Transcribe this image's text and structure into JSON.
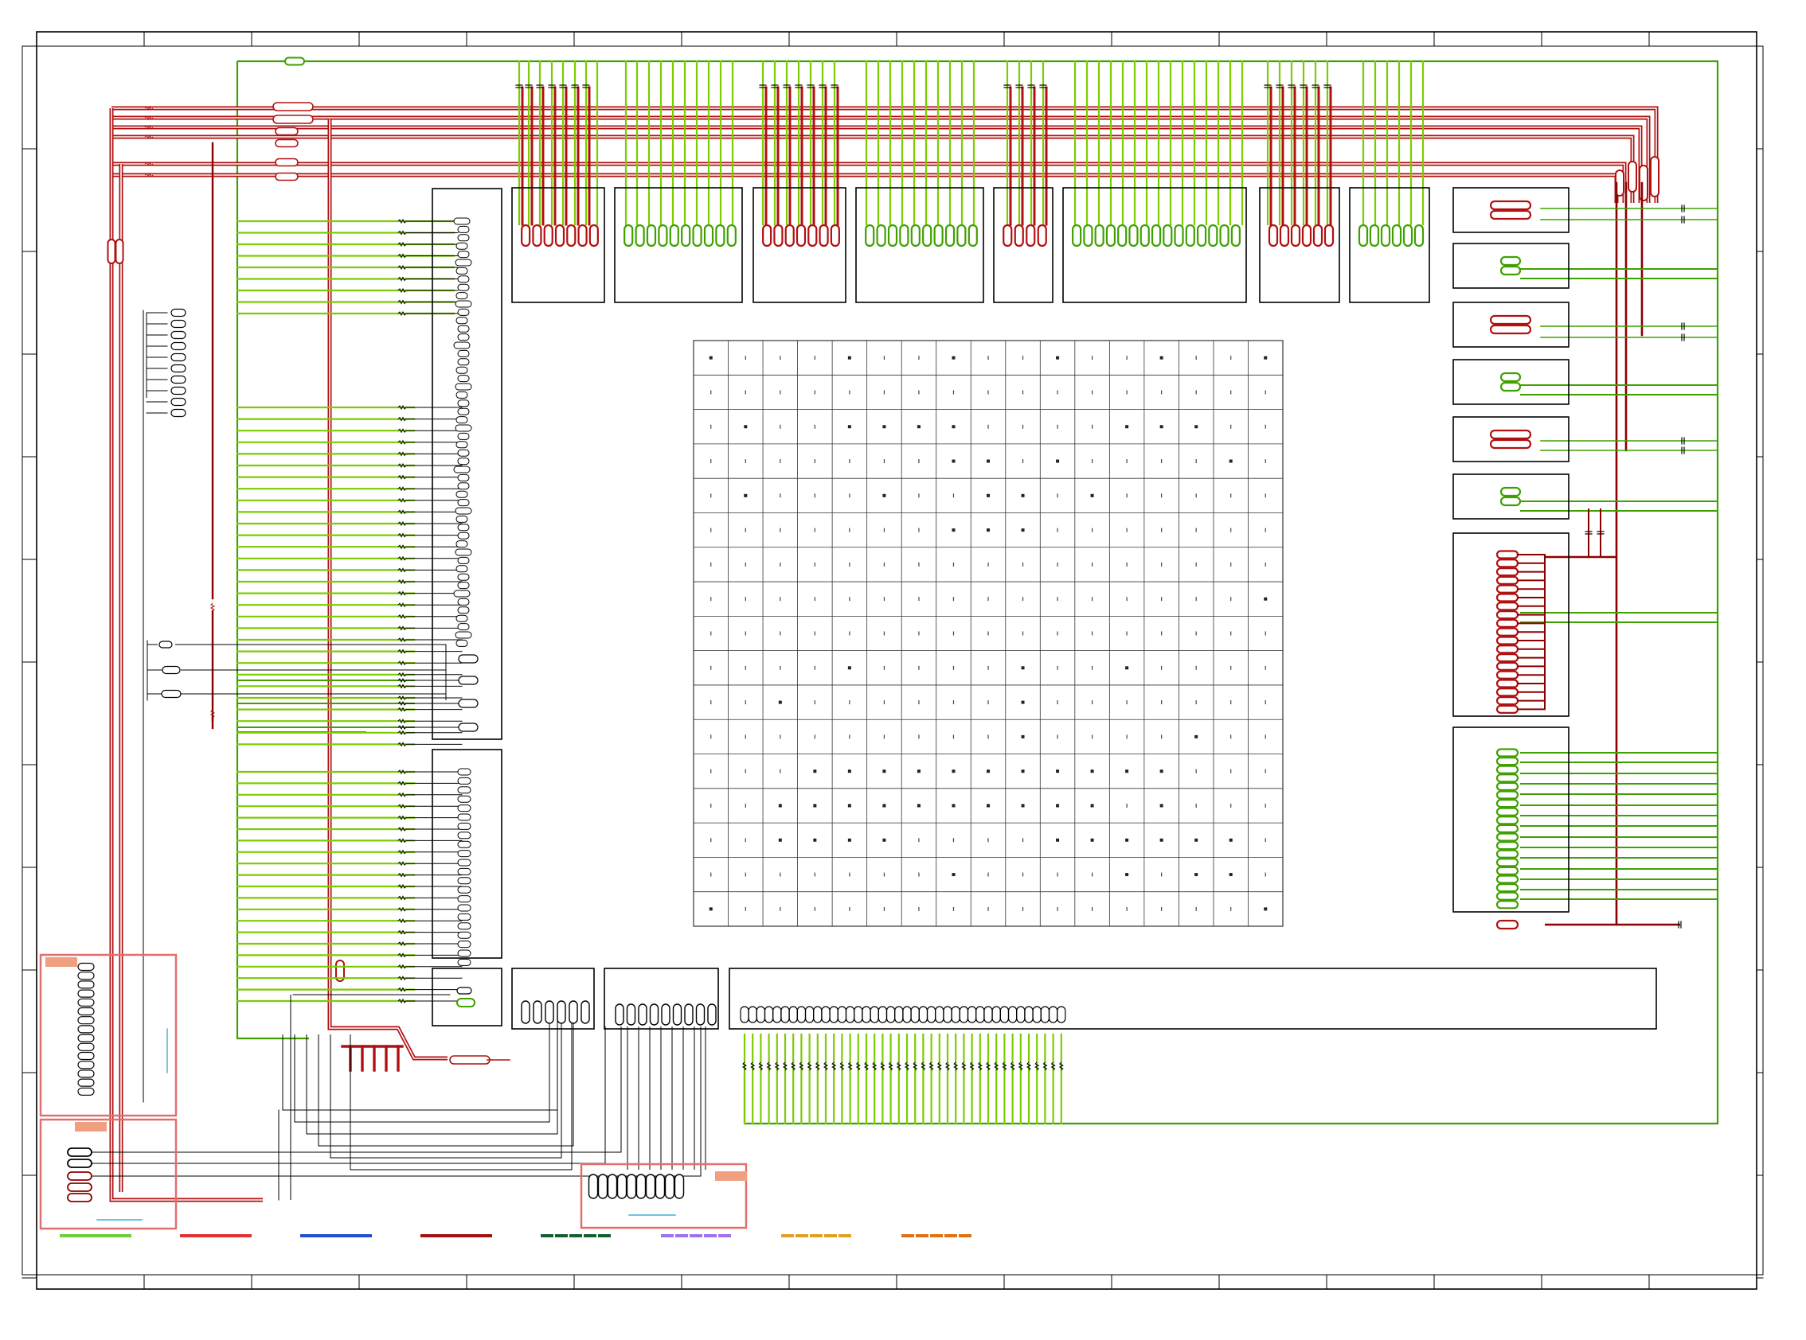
{
  "colors": {
    "background": "#ffffff",
    "frame": "#000000",
    "green_net": "#3fa000",
    "green_net_light": "#7ccc00",
    "red_net": "#b01010",
    "dark_red_net": "#8a0000",
    "thin_wire": "#000000",
    "highlight_box": "#e07070",
    "highlight_label": "#f0a080",
    "cyan_note": "#40b0d0",
    "grid_line": "#333333"
  },
  "icons": {
    "pad": "rounded-pad-icon",
    "resistor": "zigzag-resistor-icon",
    "capacitor": "capacitor-icon",
    "via": "via-dot-icon"
  },
  "legend": [
    {
      "name": "legend-green",
      "color": "#6ccf3a",
      "style": "solid"
    },
    {
      "name": "legend-red",
      "color": "#e03030",
      "style": "solid"
    },
    {
      "name": "legend-blue",
      "color": "#2050d0",
      "style": "solid"
    },
    {
      "name": "legend-dark-red",
      "color": "#a01010",
      "style": "solid"
    },
    {
      "name": "legend-dark-green",
      "color": "#106030",
      "style": "dashed"
    },
    {
      "name": "legend-purple",
      "color": "#a070f0",
      "style": "dashed"
    },
    {
      "name": "legend-orange",
      "color": "#e0a020",
      "style": "dashed"
    },
    {
      "name": "legend-dark-orange",
      "color": "#e07010",
      "style": "dashed"
    }
  ],
  "bga": {
    "rows": 17,
    "cols": 17,
    "square_cells": [
      [
        0,
        0
      ],
      [
        0,
        4
      ],
      [
        0,
        7
      ],
      [
        0,
        10
      ],
      [
        0,
        13
      ],
      [
        0,
        16
      ],
      [
        2,
        1
      ],
      [
        2,
        4
      ],
      [
        2,
        5
      ],
      [
        2,
        6
      ],
      [
        2,
        7
      ],
      [
        2,
        12
      ],
      [
        2,
        13
      ],
      [
        2,
        14
      ],
      [
        3,
        7
      ],
      [
        3,
        8
      ],
      [
        3,
        10
      ],
      [
        3,
        15
      ],
      [
        4,
        1
      ],
      [
        4,
        5
      ],
      [
        4,
        8
      ],
      [
        4,
        9
      ],
      [
        4,
        11
      ],
      [
        5,
        7
      ],
      [
        5,
        8
      ],
      [
        5,
        9
      ],
      [
        7,
        16
      ],
      [
        9,
        4
      ],
      [
        9,
        9
      ],
      [
        9,
        12
      ],
      [
        10,
        2
      ],
      [
        10,
        9
      ],
      [
        11,
        9
      ],
      [
        11,
        14
      ],
      [
        12,
        3
      ],
      [
        12,
        4
      ],
      [
        12,
        5
      ],
      [
        12,
        6
      ],
      [
        12,
        7
      ],
      [
        12,
        8
      ],
      [
        12,
        9
      ],
      [
        12,
        10
      ],
      [
        12,
        11
      ],
      [
        12,
        12
      ],
      [
        12,
        13
      ],
      [
        13,
        2
      ],
      [
        13,
        3
      ],
      [
        13,
        4
      ],
      [
        13,
        5
      ],
      [
        13,
        6
      ],
      [
        13,
        7
      ],
      [
        13,
        8
      ],
      [
        13,
        9
      ],
      [
        13,
        10
      ],
      [
        13,
        11
      ],
      [
        13,
        13
      ],
      [
        14,
        2
      ],
      [
        14,
        3
      ],
      [
        14,
        4
      ],
      [
        14,
        5
      ],
      [
        14,
        10
      ],
      [
        14,
        11
      ],
      [
        14,
        12
      ],
      [
        14,
        13
      ],
      [
        14,
        14
      ],
      [
        14,
        15
      ],
      [
        15,
        7
      ],
      [
        15,
        12
      ],
      [
        15,
        14
      ],
      [
        15,
        15
      ],
      [
        16,
        0
      ],
      [
        16,
        16
      ]
    ]
  },
  "highlight_boxes": [
    {
      "name": "highlight-box-left-upper"
    },
    {
      "name": "highlight-box-left-lower"
    },
    {
      "name": "highlight-box-bottom-center"
    }
  ]
}
